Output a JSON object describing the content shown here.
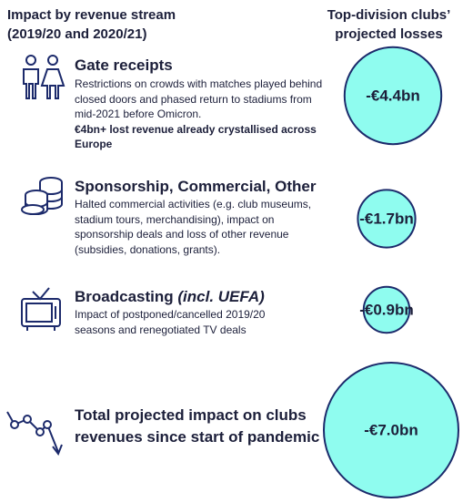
{
  "header": {
    "title": "Impact by revenue stream",
    "subtitle": "(2019/20 and 2020/21)",
    "losses_header": "Top-division clubs’ projected losses"
  },
  "streams": [
    {
      "name": "Gate receipts",
      "description": "Restrictions on crowds with matches played behind closed doors and phased return to stadiums from mid-2021 before Omicron.",
      "note": "€4bn+ lost revenue already crystallised across Europe",
      "value": -4.4,
      "value_label": "-€4.4bn"
    },
    {
      "name": "Sponsorship, Commercial, Other",
      "description": "Halted commercial activities (e.g. club museums, stadium tours, merchandising), impact on sponsorship deals and loss of other revenue (subsidies, donations, grants).",
      "value": -1.7,
      "value_label": "-€1.7bn"
    },
    {
      "name": "Broadcasting",
      "name_note": "(incl. UEFA)",
      "description": "Impact of postponed/cancelled 2019/20 seasons and renegotiated TV deals",
      "value": -0.9,
      "value_label": "-€0.9bn"
    }
  ],
  "total": {
    "label": "Total projected impact on clubs revenues since start of pandemic",
    "value": -7.0,
    "value_label": "-€7.0bn"
  }
}
